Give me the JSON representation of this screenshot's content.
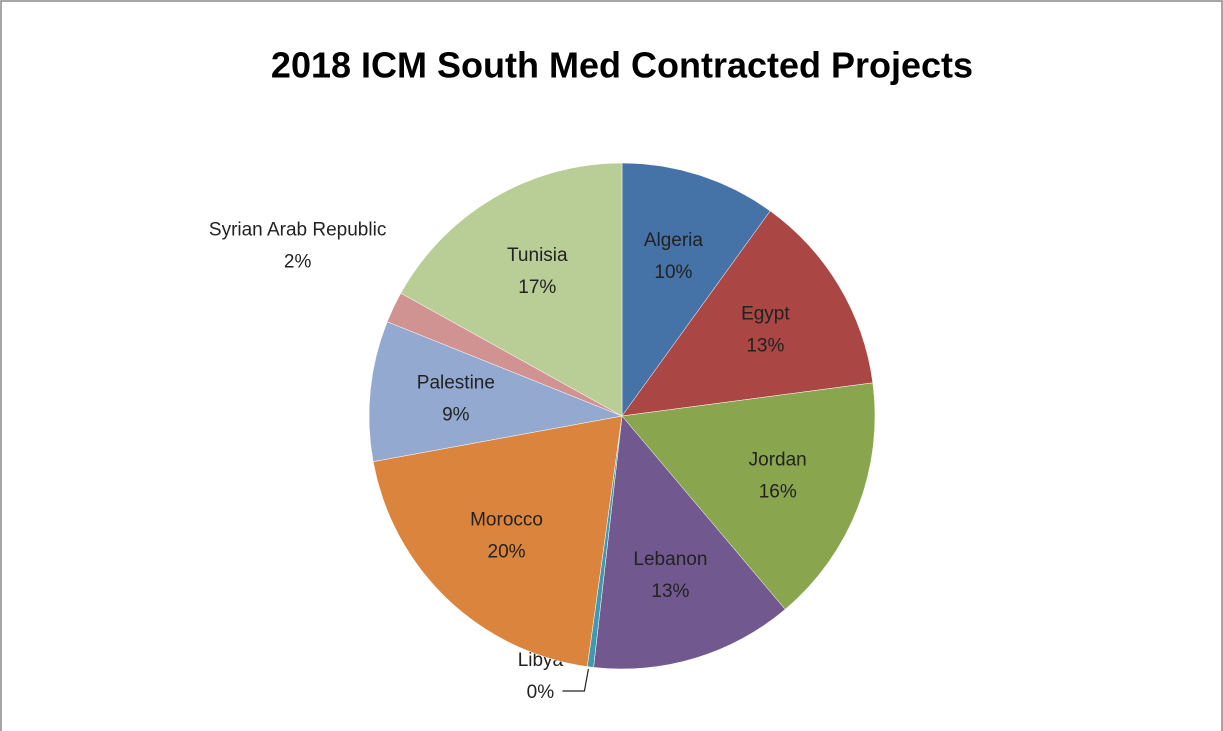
{
  "chart_data": {
    "type": "pie",
    "title": "2018 ICM South Med Contracted Projects",
    "categories": [
      "Algeria",
      "Egypt",
      "Jordan",
      "Lebanon",
      "Libya",
      "Morocco",
      "Palestine",
      "Syrian Arab Republic",
      "Tunisia"
    ],
    "values": [
      10,
      13,
      16,
      13,
      0.4,
      20,
      9,
      2,
      17
    ],
    "value_labels": [
      "10%",
      "13%",
      "16%",
      "13%",
      "0%",
      "20%",
      "9%",
      "2%",
      "17%"
    ],
    "colors": [
      "#4572a7",
      "#aa4643",
      "#89a54e",
      "#71588f",
      "#4198af",
      "#db843d",
      "#93a9cf",
      "#d19392",
      "#b9cd96"
    ]
  }
}
